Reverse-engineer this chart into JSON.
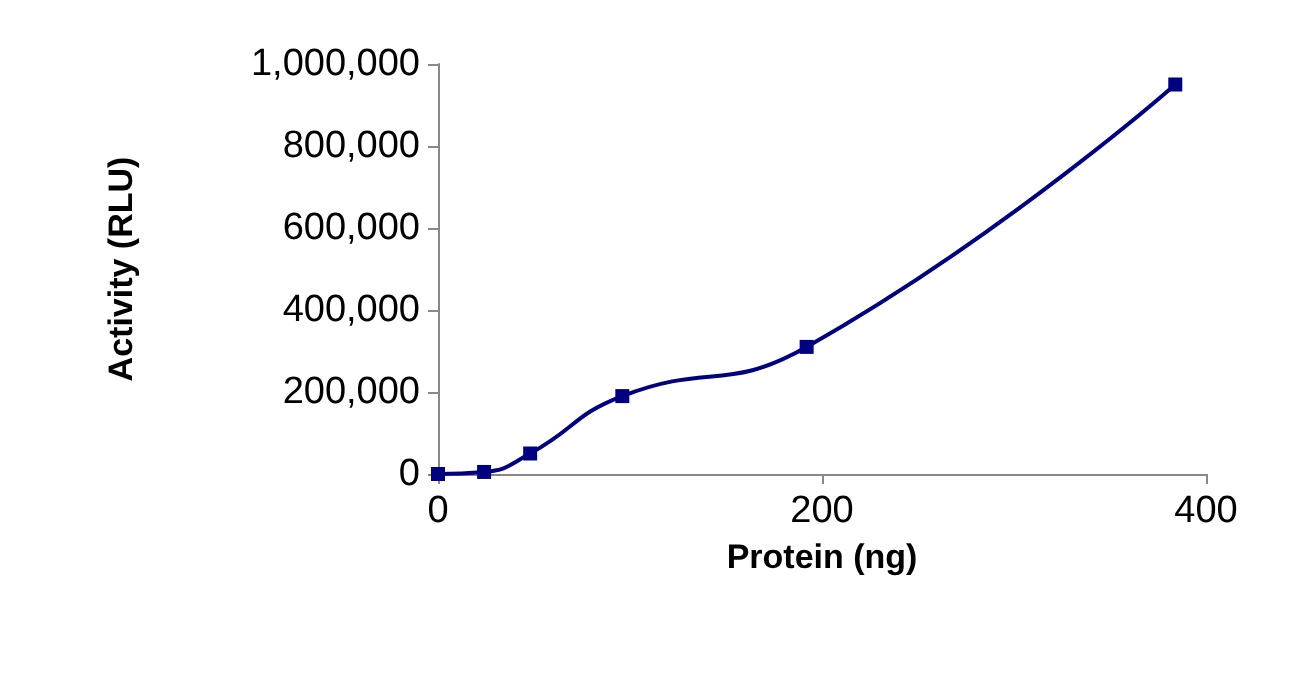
{
  "chart_data": {
    "type": "line",
    "xlabel": "Protein (ng)",
    "ylabel": "Activity (RLU)",
    "x": [
      0,
      24,
      48,
      96,
      192,
      384
    ],
    "series": [
      {
        "color": "#000080",
        "values": [
          0,
          5000,
          50000,
          190000,
          310000,
          950000
        ]
      }
    ],
    "xlim": [
      0,
      400
    ],
    "xticks": [
      0,
      200,
      400
    ],
    "ylim": [
      0,
      1000000
    ],
    "yticks": [
      {
        "value": 0,
        "label": "0"
      },
      {
        "value": 200000,
        "label": "200,000"
      },
      {
        "value": 400000,
        "label": "400,000"
      },
      {
        "value": 600000,
        "label": "600,000"
      },
      {
        "value": 800000,
        "label": "800,000"
      },
      {
        "value": 1000000,
        "label": "1,000,000"
      }
    ],
    "marker": "square",
    "line_style": "solid",
    "grid": false
  }
}
